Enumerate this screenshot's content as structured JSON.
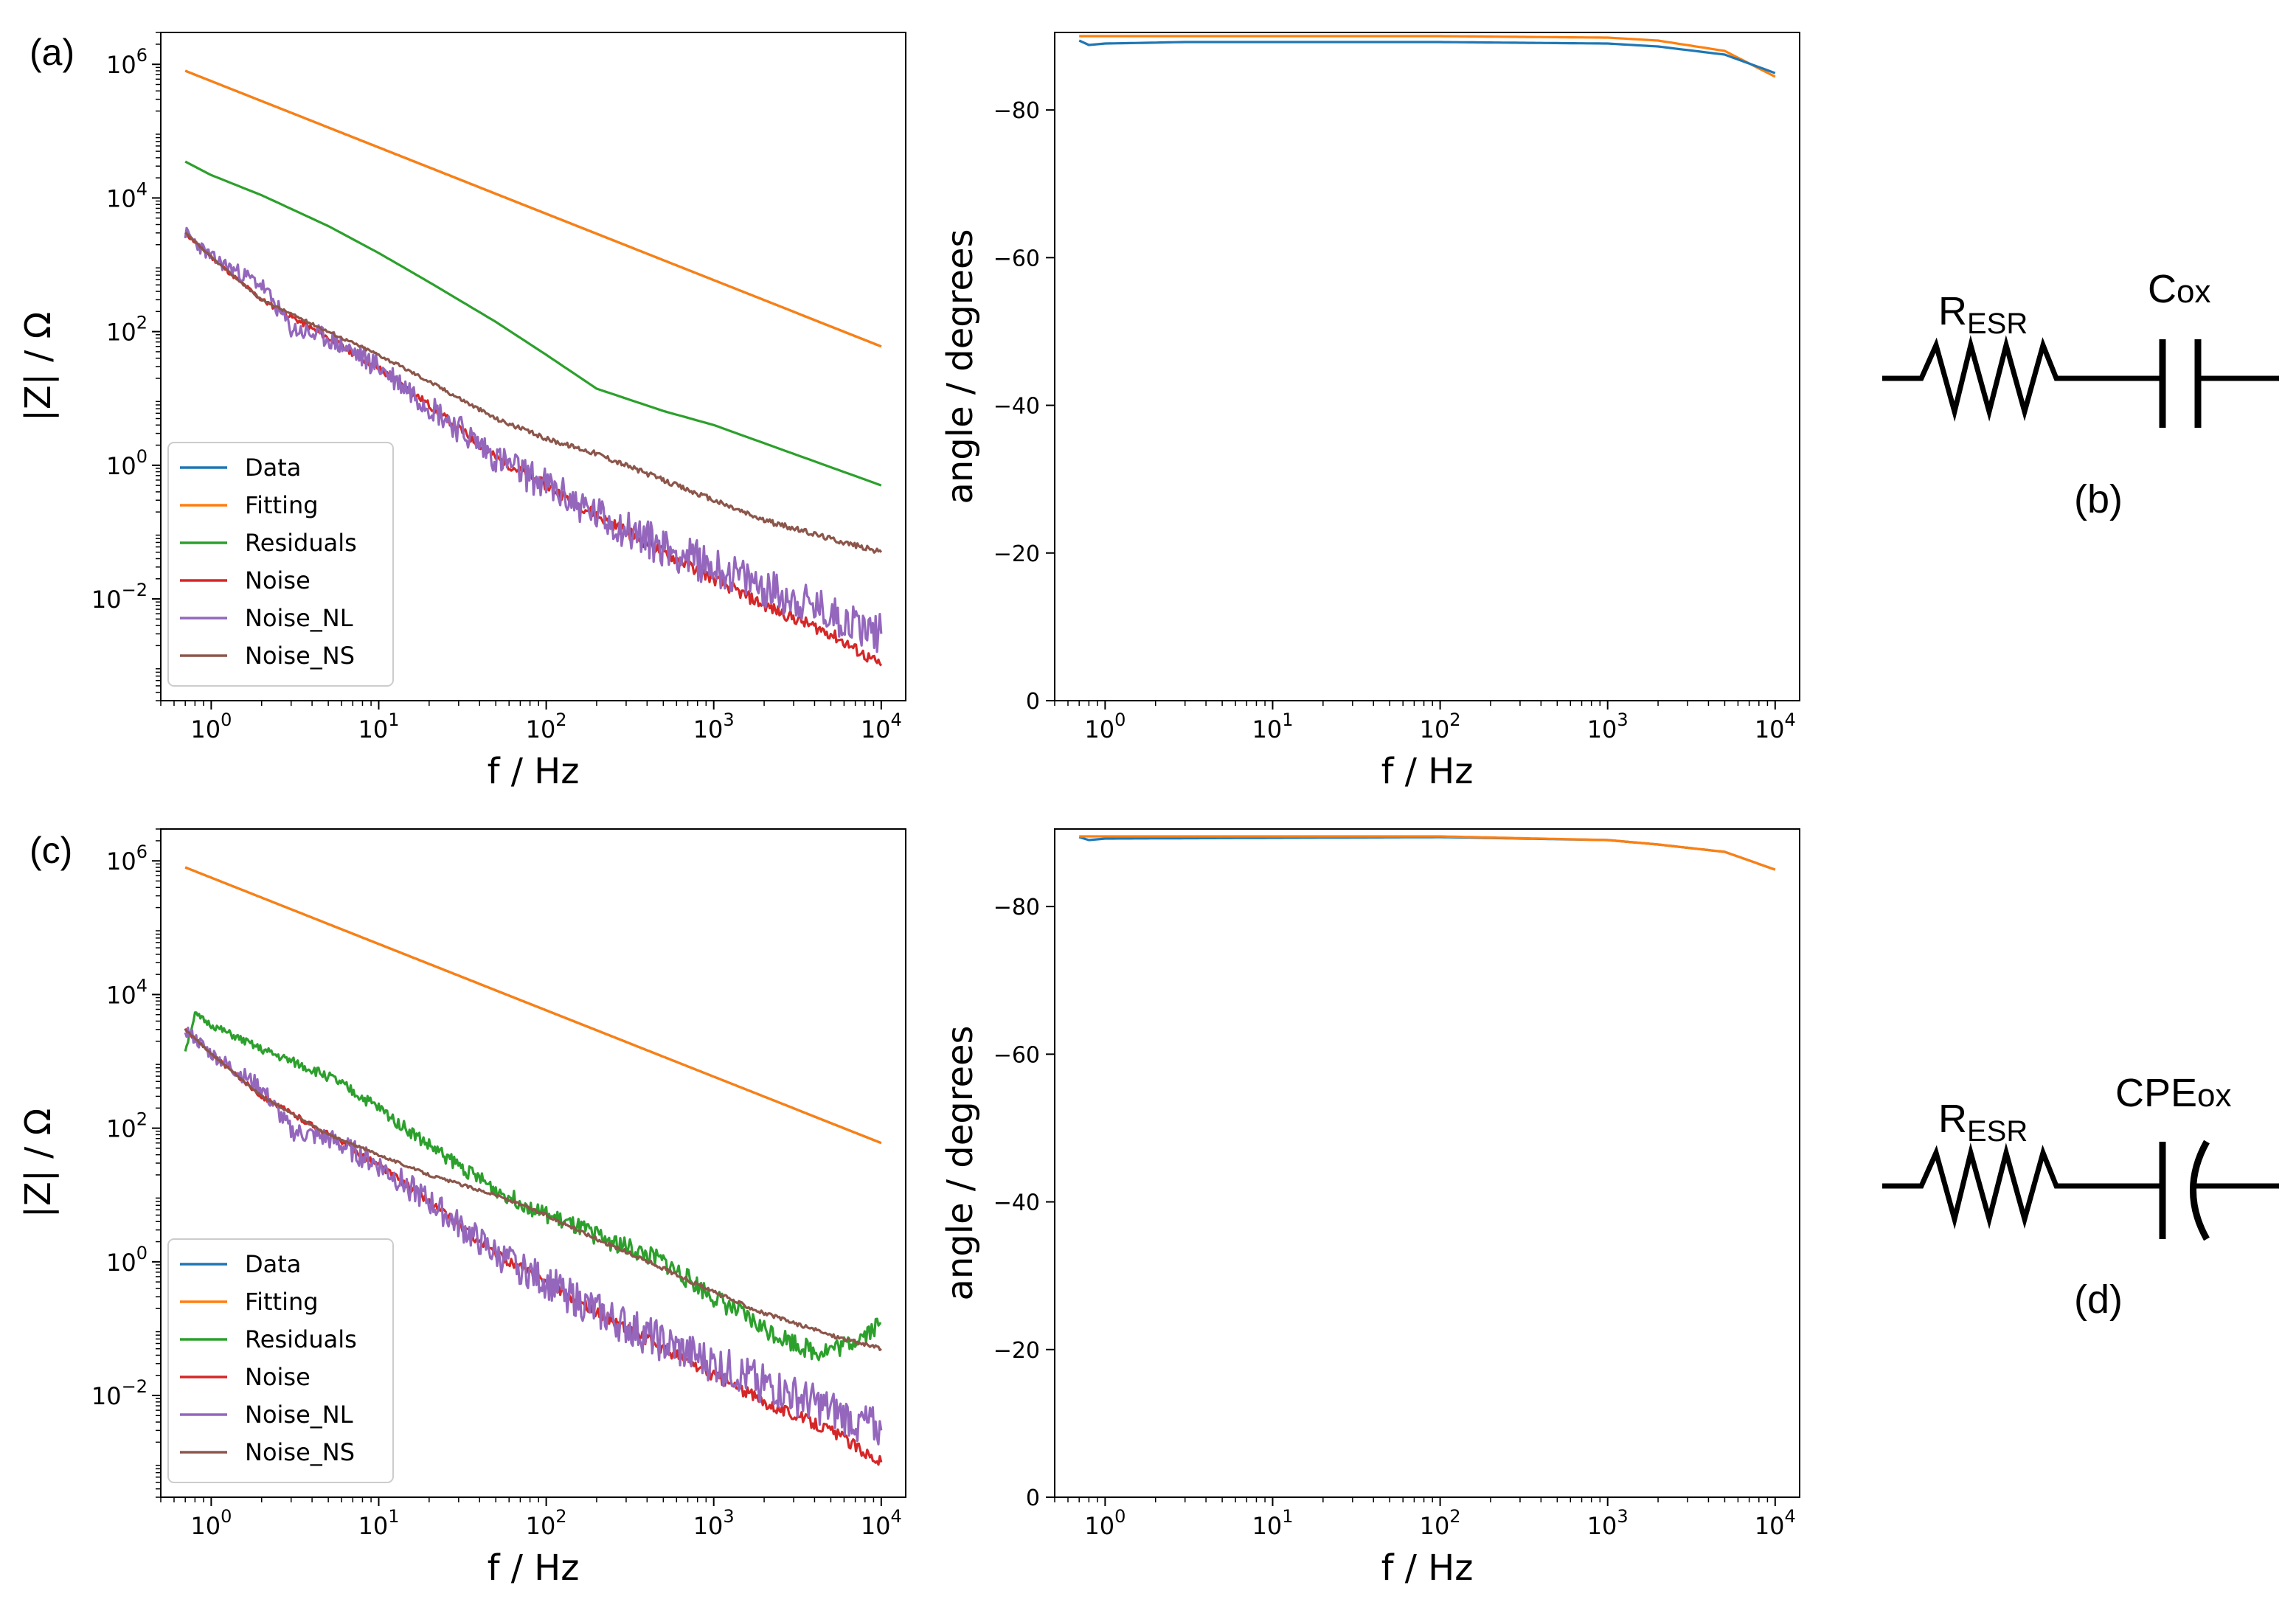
{
  "panel_labels": {
    "a": "(a)",
    "b": "(b)",
    "c": "(c)",
    "d": "(d)"
  },
  "colors": {
    "data": "#1f77b4",
    "fitting": "#ff7f0e",
    "residuals": "#2ca02c",
    "noise": "#d62728",
    "noise_nl": "#9467bd",
    "noise_ns": "#8c564b"
  },
  "chart_data": [
    {
      "id": "a-mag",
      "type": "line",
      "xscale": "log",
      "yscale": "log",
      "xlabel": "f / Hz",
      "ylabel": "|Z| / Ω",
      "xlim": [
        0.5,
        14000
      ],
      "ylim": [
        0.0003,
        3000000
      ],
      "xticks": [
        {
          "v": 1,
          "e": "0"
        },
        {
          "v": 10,
          "e": "1"
        },
        {
          "v": 100,
          "e": "2"
        },
        {
          "v": 1000,
          "e": "3"
        },
        {
          "v": 10000,
          "e": "4"
        }
      ],
      "yticks": [
        {
          "v": 0.01,
          "e": "−2"
        },
        {
          "v": 1,
          "e": "0"
        },
        {
          "v": 100,
          "e": "2"
        },
        {
          "v": 10000,
          "e": "4"
        },
        {
          "v": 1000000,
          "e": "6"
        }
      ],
      "legend": {
        "position": "bottom-left",
        "entries": [
          "Data",
          "Fitting",
          "Residuals",
          "Noise",
          "Noise_NL",
          "Noise_NS"
        ]
      },
      "series": [
        {
          "name": "Data",
          "color_key": "data",
          "points": [
            [
              0.7,
              800000
            ],
            [
              10000,
              60
            ]
          ]
        },
        {
          "name": "Fitting",
          "color_key": "fitting",
          "points": [
            [
              0.7,
              800000
            ],
            [
              10000,
              60
            ]
          ]
        },
        {
          "name": "Residuals",
          "color_key": "residuals",
          "points": [
            [
              0.7,
              35000
            ],
            [
              1,
              22000
            ],
            [
              2,
              11000
            ],
            [
              5,
              3800
            ],
            [
              10,
              1500
            ],
            [
              20,
              550
            ],
            [
              50,
              140
            ],
            [
              100,
              45
            ],
            [
              200,
              14
            ],
            [
              500,
              6.5
            ],
            [
              1000,
              4
            ],
            [
              10000,
              0.5
            ]
          ]
        },
        {
          "name": "Noise",
          "color_key": "noise",
          "noisy": true,
          "seed": 11,
          "amp": 0.18,
          "points": [
            [
              0.7,
              3000
            ],
            [
              1,
              1300
            ],
            [
              2,
              300
            ],
            [
              5,
              80
            ],
            [
              10,
              28
            ],
            [
              20,
              8
            ],
            [
              50,
              1.3
            ],
            [
              100,
              0.5
            ],
            [
              200,
              0.18
            ],
            [
              500,
              0.05
            ],
            [
              1000,
              0.02
            ],
            [
              2000,
              0.008
            ],
            [
              5000,
              0.003
            ],
            [
              10000,
              0.001
            ]
          ]
        },
        {
          "name": "Noise_NL",
          "color_key": "noise_nl",
          "noisy": true,
          "seed": 23,
          "amp": 0.6,
          "points": [
            [
              0.7,
              3000
            ],
            [
              1,
              1300
            ],
            [
              2,
              500
            ],
            [
              3,
              110
            ],
            [
              5,
              80
            ],
            [
              10,
              30
            ],
            [
              20,
              8
            ],
            [
              50,
              1.3
            ],
            [
              100,
              0.5
            ],
            [
              200,
              0.18
            ],
            [
              500,
              0.06
            ],
            [
              1000,
              0.03
            ],
            [
              2000,
              0.015
            ],
            [
              5000,
              0.006
            ],
            [
              10000,
              0.003
            ]
          ]
        },
        {
          "name": "Noise_NS",
          "color_key": "noise_ns",
          "noisy": true,
          "seed": 37,
          "amp": 0.08,
          "points": [
            [
              0.7,
              3000
            ],
            [
              1,
              1300
            ],
            [
              2,
              300
            ],
            [
              5,
              100
            ],
            [
              10,
              45
            ],
            [
              20,
              18
            ],
            [
              50,
              5
            ],
            [
              100,
              2.5
            ],
            [
              200,
              1.5
            ],
            [
              500,
              0.6
            ],
            [
              1000,
              0.3
            ],
            [
              2000,
              0.15
            ],
            [
              5000,
              0.08
            ],
            [
              10000,
              0.05
            ]
          ]
        }
      ]
    },
    {
      "id": "a-phase",
      "type": "line",
      "xscale": "log",
      "yscale": "linear",
      "xlabel": "f / Hz",
      "ylabel": "angle / degrees",
      "xlim": [
        0.5,
        14000
      ],
      "ylim": [
        0,
        -90.5
      ],
      "xticks": [
        {
          "v": 1,
          "e": "0"
        },
        {
          "v": 10,
          "e": "1"
        },
        {
          "v": 100,
          "e": "2"
        },
        {
          "v": 1000,
          "e": "3"
        },
        {
          "v": 10000,
          "e": "4"
        }
      ],
      "yticks_linear": [
        0,
        -20,
        -40,
        -60,
        -80
      ],
      "series": [
        {
          "name": "Fitting",
          "color_key": "fitting",
          "points": [
            [
              0.7,
              -90
            ],
            [
              1,
              -90
            ],
            [
              100,
              -90
            ],
            [
              1000,
              -89.8
            ],
            [
              2000,
              -89.4
            ],
            [
              5000,
              -88
            ],
            [
              10000,
              -84.5
            ]
          ]
        },
        {
          "name": "Data",
          "color_key": "data",
          "points": [
            [
              0.7,
              -89.4
            ],
            [
              0.8,
              -88.8
            ],
            [
              1,
              -89
            ],
            [
              3,
              -89.2
            ],
            [
              100,
              -89.2
            ],
            [
              1000,
              -89
            ],
            [
              2000,
              -88.6
            ],
            [
              5000,
              -87.5
            ],
            [
              10000,
              -85
            ]
          ]
        }
      ]
    },
    {
      "id": "c-mag",
      "type": "line",
      "xscale": "log",
      "yscale": "log",
      "xlabel": "f / Hz",
      "ylabel": "|Z| / Ω",
      "xlim": [
        0.5,
        14000
      ],
      "ylim": [
        0.0003,
        3000000
      ],
      "xticks": [
        {
          "v": 1,
          "e": "0"
        },
        {
          "v": 10,
          "e": "1"
        },
        {
          "v": 100,
          "e": "2"
        },
        {
          "v": 1000,
          "e": "3"
        },
        {
          "v": 10000,
          "e": "4"
        }
      ],
      "yticks": [
        {
          "v": 0.01,
          "e": "−2"
        },
        {
          "v": 1,
          "e": "0"
        },
        {
          "v": 100,
          "e": "2"
        },
        {
          "v": 10000,
          "e": "4"
        },
        {
          "v": 1000000,
          "e": "6"
        }
      ],
      "legend": {
        "position": "bottom-left",
        "entries": [
          "Data",
          "Fitting",
          "Residuals",
          "Noise",
          "Noise_NL",
          "Noise_NS"
        ]
      },
      "series": [
        {
          "name": "Data",
          "color_key": "data",
          "points": [
            [
              0.7,
              800000
            ],
            [
              10000,
              60
            ]
          ]
        },
        {
          "name": "Fitting",
          "color_key": "fitting",
          "points": [
            [
              0.7,
              800000
            ],
            [
              10000,
              60
            ]
          ]
        },
        {
          "name": "Residuals",
          "color_key": "residuals",
          "noisy": true,
          "seed": 51,
          "amp": 0.3,
          "points": [
            [
              0.7,
              1500
            ],
            [
              0.8,
              5000
            ],
            [
              1,
              3500
            ],
            [
              2,
              1500
            ],
            [
              5,
              600
            ],
            [
              10,
              200
            ],
            [
              20,
              55
            ],
            [
              50,
              12
            ],
            [
              100,
              5
            ],
            [
              200,
              2.5
            ],
            [
              500,
              1
            ],
            [
              1000,
              0.3
            ],
            [
              2000,
              0.1
            ],
            [
              4000,
              0.045
            ],
            [
              6000,
              0.055
            ],
            [
              10000,
              0.12
            ]
          ]
        },
        {
          "name": "Noise",
          "color_key": "noise",
          "noisy": true,
          "seed": 63,
          "amp": 0.18,
          "points": [
            [
              0.7,
              3000
            ],
            [
              1,
              1300
            ],
            [
              2,
              300
            ],
            [
              5,
              80
            ],
            [
              10,
              28
            ],
            [
              20,
              8
            ],
            [
              50,
              1.3
            ],
            [
              100,
              0.5
            ],
            [
              200,
              0.18
            ],
            [
              500,
              0.05
            ],
            [
              1000,
              0.02
            ],
            [
              2000,
              0.008
            ],
            [
              5000,
              0.003
            ],
            [
              10000,
              0.001
            ]
          ]
        },
        {
          "name": "Noise_NL",
          "color_key": "noise_nl",
          "noisy": true,
          "seed": 77,
          "amp": 0.6,
          "points": [
            [
              0.7,
              3000
            ],
            [
              1,
              1300
            ],
            [
              2,
              400
            ],
            [
              3,
              90
            ],
            [
              5,
              70
            ],
            [
              10,
              28
            ],
            [
              20,
              8
            ],
            [
              50,
              1.3
            ],
            [
              100,
              0.5
            ],
            [
              200,
              0.18
            ],
            [
              500,
              0.06
            ],
            [
              1000,
              0.03
            ],
            [
              2000,
              0.015
            ],
            [
              5000,
              0.006
            ],
            [
              10000,
              0.003
            ]
          ]
        },
        {
          "name": "Noise_NS",
          "color_key": "noise_ns",
          "noisy": true,
          "seed": 89,
          "amp": 0.06,
          "points": [
            [
              0.7,
              3000
            ],
            [
              1,
              1300
            ],
            [
              2,
              300
            ],
            [
              5,
              80
            ],
            [
              10,
              40
            ],
            [
              20,
              20
            ],
            [
              50,
              10
            ],
            [
              100,
              5
            ],
            [
              200,
              2.2
            ],
            [
              500,
              0.8
            ],
            [
              1000,
              0.35
            ],
            [
              2000,
              0.17
            ],
            [
              5000,
              0.08
            ],
            [
              10000,
              0.05
            ]
          ]
        }
      ]
    },
    {
      "id": "c-phase",
      "type": "line",
      "xscale": "log",
      "yscale": "linear",
      "xlabel": "f / Hz",
      "ylabel": "angle / degrees",
      "xlim": [
        0.5,
        14000
      ],
      "ylim": [
        0,
        -90.5
      ],
      "xticks": [
        {
          "v": 1,
          "e": "0"
        },
        {
          "v": 10,
          "e": "1"
        },
        {
          "v": 100,
          "e": "2"
        },
        {
          "v": 1000,
          "e": "3"
        },
        {
          "v": 10000,
          "e": "4"
        }
      ],
      "yticks_linear": [
        0,
        -20,
        -40,
        -60,
        -80
      ],
      "series": [
        {
          "name": "Data",
          "color_key": "data",
          "points": [
            [
              0.7,
              -89.4
            ],
            [
              0.8,
              -89
            ],
            [
              1,
              -89.2
            ],
            [
              100,
              -89.4
            ],
            [
              1000,
              -89
            ],
            [
              2000,
              -88.4
            ],
            [
              5000,
              -87.4
            ],
            [
              10000,
              -85
            ]
          ]
        },
        {
          "name": "Fitting",
          "color_key": "fitting",
          "points": [
            [
              0.7,
              -89.5
            ],
            [
              1,
              -89.5
            ],
            [
              100,
              -89.5
            ],
            [
              1000,
              -89
            ],
            [
              2000,
              -88.4
            ],
            [
              5000,
              -87.4
            ],
            [
              10000,
              -85
            ]
          ]
        }
      ]
    }
  ],
  "circuits": {
    "b": {
      "r_main": "R",
      "r_sub": "ESR",
      "c_main": "C",
      "c_sub": "ox"
    },
    "d": {
      "r_main": "R",
      "r_sub": "ESR",
      "c_main": "CPE",
      "c_sub": "ox"
    }
  }
}
